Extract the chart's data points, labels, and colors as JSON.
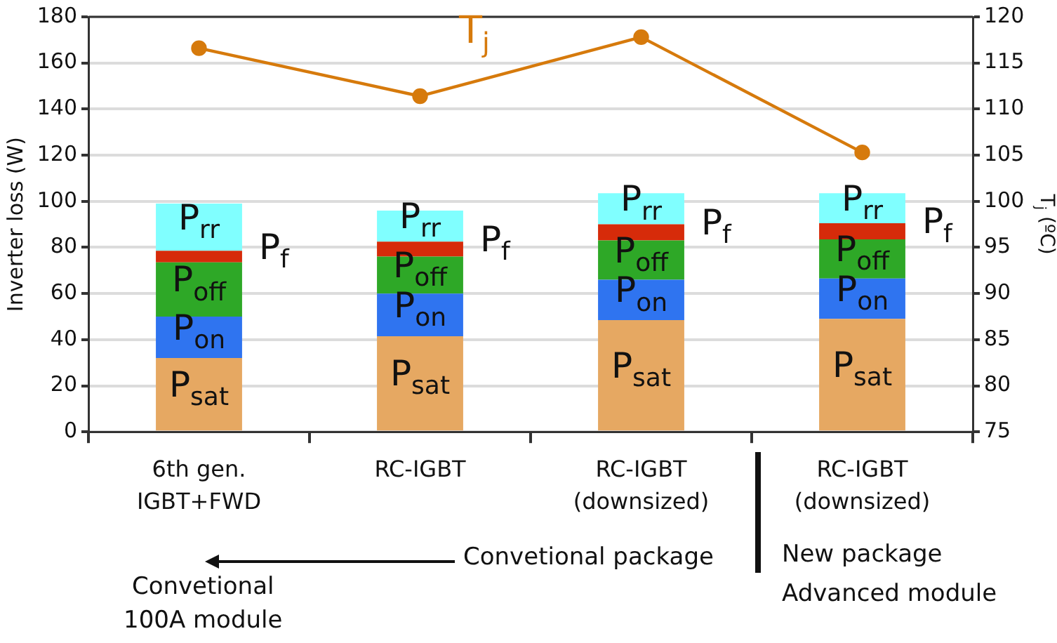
{
  "chart_data": {
    "type": "bar",
    "stacked": true,
    "categories": [
      "6th gen.\nIGBT+FWD",
      "RC-IGBT",
      "RC-IGBT\n(downsized)",
      "RC-IGBT\n(downsized)"
    ],
    "ylabel": "Inverter loss (W)",
    "y2label": "T$_{j}$ (ºC)",
    "ylim": [
      0,
      180
    ],
    "yticks": [
      0,
      20,
      40,
      60,
      80,
      100,
      120,
      140,
      160,
      180
    ],
    "y2lim": [
      75,
      120
    ],
    "y2ticks": [
      75,
      80,
      85,
      90,
      95,
      100,
      105,
      110,
      115,
      120
    ],
    "grid": "y",
    "legend": false,
    "series": [
      {
        "name": "P$_{sat}$",
        "color": "#e6a862",
        "values": [
          32,
          41.5,
          48.5,
          49
        ]
      },
      {
        "name": "P$_{on}$",
        "color": "#2f74f0",
        "values": [
          18,
          18.5,
          17.5,
          17.5
        ]
      },
      {
        "name": "P$_{off}$",
        "color": "#2ea827",
        "values": [
          23.5,
          16,
          17,
          17
        ]
      },
      {
        "name": "P$_{f}$",
        "color": "#d62b0a",
        "values": [
          5,
          6.5,
          7,
          7
        ]
      },
      {
        "name": "P$_{rr}$",
        "color": "#80ffff",
        "values": [
          20.5,
          13.5,
          13.5,
          13
        ]
      },
      {
        "name": "T$_{j}$",
        "type": "line",
        "axis": "y2",
        "color": "#d67a0c",
        "marker": "circle",
        "values": [
          116.6,
          111.4,
          117.8,
          105.3
        ]
      }
    ],
    "annotations": [
      "Convetional package",
      "Convetional\n100A module",
      "New package",
      "Advanced module"
    ]
  }
}
